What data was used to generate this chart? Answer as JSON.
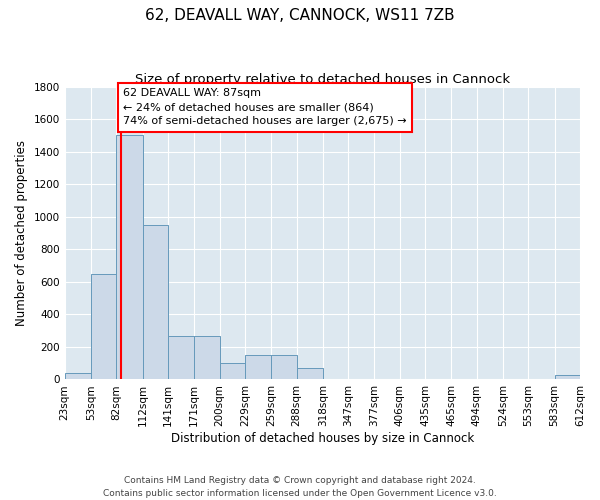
{
  "title": "62, DEAVALL WAY, CANNOCK, WS11 7ZB",
  "subtitle": "Size of property relative to detached houses in Cannock",
  "xlabel": "Distribution of detached houses by size in Cannock",
  "ylabel": "Number of detached properties",
  "bin_edges": [
    23,
    53,
    82,
    112,
    141,
    171,
    200,
    229,
    259,
    288,
    318,
    347,
    377,
    406,
    435,
    465,
    494,
    524,
    553,
    583,
    612
  ],
  "bar_heights": [
    40,
    650,
    1500,
    950,
    270,
    270,
    100,
    150,
    150,
    70,
    0,
    0,
    0,
    0,
    0,
    0,
    0,
    0,
    0,
    30
  ],
  "bar_color": "#ccd9e8",
  "bar_edge_color": "#6699bb",
  "background_color": "#dde8f0",
  "red_line_x": 87,
  "annotation_text": "62 DEAVALL WAY: 87sqm\n← 24% of detached houses are smaller (864)\n74% of semi-detached houses are larger (2,675) →",
  "annotation_box_color": "white",
  "annotation_box_edge_color": "red",
  "ylim": [
    0,
    1800
  ],
  "yticks": [
    0,
    200,
    400,
    600,
    800,
    1000,
    1200,
    1400,
    1600,
    1800
  ],
  "footer_text": "Contains HM Land Registry data © Crown copyright and database right 2024.\nContains public sector information licensed under the Open Government Licence v3.0.",
  "title_fontsize": 11,
  "subtitle_fontsize": 9.5,
  "xlabel_fontsize": 8.5,
  "ylabel_fontsize": 8.5,
  "tick_fontsize": 7.5,
  "annot_fontsize": 8
}
